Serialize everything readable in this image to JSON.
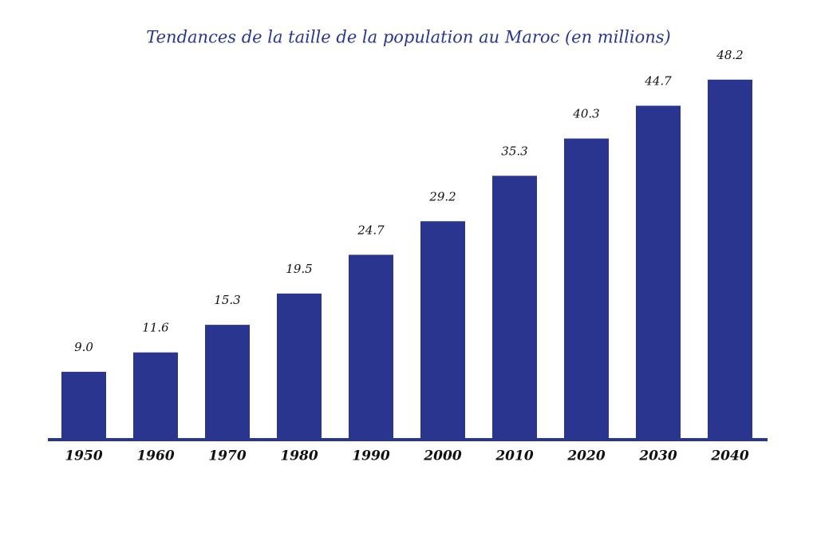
{
  "chart_data": {
    "type": "bar",
    "title": "Tendances de la taille de la population au Maroc (en millions)",
    "categories": [
      "1950",
      "1960",
      "1970",
      "1980",
      "1990",
      "2000",
      "2010",
      "2020",
      "2030",
      "2040"
    ],
    "values": [
      9.0,
      11.6,
      15.3,
      19.5,
      24.7,
      29.2,
      35.3,
      40.3,
      44.7,
      48.2
    ],
    "value_labels": [
      "9.0",
      "11.6",
      "15.3",
      "19.5",
      "24.7",
      "29.2",
      "35.3",
      "40.3",
      "44.7",
      "48.2"
    ],
    "color": "#2a3590",
    "ylim": [
      0,
      50
    ]
  }
}
